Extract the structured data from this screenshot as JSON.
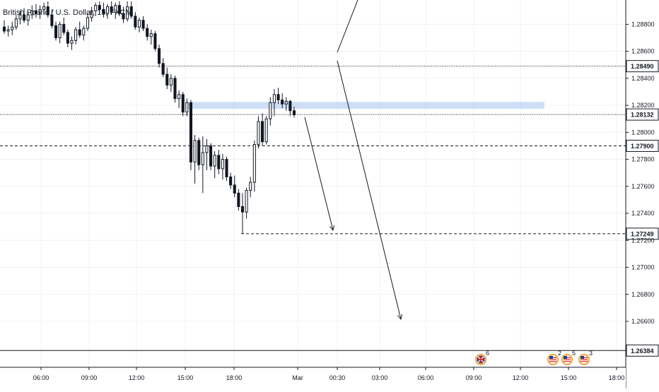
{
  "chart_data": {
    "type": "candlestick",
    "title": "British Pound / U.S. Dollar, 15, FXCM",
    "x_ticks": [
      "06:00",
      "09:00",
      "12:00",
      "15:00",
      "18:00",
      "Mar",
      "00:30",
      "03:00",
      "06:00",
      "09:00",
      "12:00",
      "15:00",
      "18:00"
    ],
    "y_ticks": [
      1.288,
      1.286,
      1.2849,
      1.284,
      1.282,
      1.28132,
      1.28,
      1.279,
      1.278,
      1.276,
      1.274,
      1.27249,
      1.272,
      1.27,
      1.268,
      1.266,
      1.26384
    ],
    "y_tick_labels": [
      "1.28800",
      "1.28600",
      "1.28490",
      "1.28400",
      "1.28200",
      "1.28132",
      "1.28000",
      "1.27900",
      "1.27800",
      "1.27600",
      "1.27400",
      "1.27249",
      "1.27200",
      "1.27000",
      "1.26800",
      "1.26600",
      "1.26384"
    ],
    "ylim": [
      1.2626,
      1.2898
    ],
    "grid": true,
    "horizontal_levels": [
      {
        "value": 1.2849,
        "label": "1.28490",
        "style": "dotted"
      },
      {
        "value": 1.28132,
        "label": "1.28132",
        "style": "dotted"
      },
      {
        "value": 1.279,
        "label": "1.27900",
        "style": "dashed"
      },
      {
        "value": 1.27249,
        "label": "1.27249",
        "style": "dashed"
      },
      {
        "value": 1.26384,
        "label": "1.26384",
        "style": "solid"
      }
    ],
    "zone": {
      "from": 1.2818,
      "to": 1.2822,
      "color": "#c5d8f5"
    },
    "candles": [
      [
        1.2878,
        1.2883,
        1.2873,
        1.2875
      ],
      [
        1.2875,
        1.2879,
        1.2871,
        1.2876
      ],
      [
        1.2876,
        1.2882,
        1.2872,
        1.2878
      ],
      [
        1.2878,
        1.2887,
        1.2876,
        1.2884
      ],
      [
        1.2884,
        1.289,
        1.288,
        1.2887
      ],
      [
        1.2887,
        1.2892,
        1.2881,
        1.2883
      ],
      [
        1.2883,
        1.2889,
        1.2879,
        1.2887
      ],
      [
        1.2887,
        1.2894,
        1.2884,
        1.289
      ],
      [
        1.289,
        1.2895,
        1.2885,
        1.2888
      ],
      [
        1.2888,
        1.2894,
        1.2884,
        1.2891
      ],
      [
        1.2891,
        1.2896,
        1.2887,
        1.2893
      ],
      [
        1.2893,
        1.2897,
        1.2885,
        1.2887
      ],
      [
        1.2887,
        1.2891,
        1.2877,
        1.2879
      ],
      [
        1.2879,
        1.2882,
        1.2868,
        1.287
      ],
      [
        1.287,
        1.2882,
        1.2866,
        1.288
      ],
      [
        1.288,
        1.2885,
        1.2872,
        1.2874
      ],
      [
        1.2874,
        1.2876,
        1.2863,
        1.2866
      ],
      [
        1.2866,
        1.2871,
        1.2861,
        1.2868
      ],
      [
        1.2868,
        1.2878,
        1.2865,
        1.2876
      ],
      [
        1.2876,
        1.2882,
        1.287,
        1.2872
      ],
      [
        1.2872,
        1.2879,
        1.2868,
        1.2877
      ],
      [
        1.2877,
        1.2888,
        1.2875,
        1.2885
      ],
      [
        1.2885,
        1.2893,
        1.2882,
        1.289
      ],
      [
        1.289,
        1.2896,
        1.2886,
        1.2894
      ],
      [
        1.2894,
        1.2897,
        1.2888,
        1.2891
      ],
      [
        1.2891,
        1.2896,
        1.2885,
        1.2888
      ],
      [
        1.2888,
        1.2895,
        1.2884,
        1.2893
      ],
      [
        1.2893,
        1.2897,
        1.2887,
        1.2889
      ],
      [
        1.2889,
        1.2896,
        1.2884,
        1.2894
      ],
      [
        1.2894,
        1.2897,
        1.2886,
        1.2888
      ],
      [
        1.2888,
        1.2893,
        1.2881,
        1.2884
      ],
      [
        1.2884,
        1.2897,
        1.2882,
        1.2893
      ],
      [
        1.2893,
        1.2897,
        1.2884,
        1.2886
      ],
      [
        1.2886,
        1.2889,
        1.2876,
        1.2878
      ],
      [
        1.2878,
        1.2885,
        1.2874,
        1.2883
      ],
      [
        1.2883,
        1.2886,
        1.2875,
        1.2877
      ],
      [
        1.2877,
        1.288,
        1.2868,
        1.2871
      ],
      [
        1.2871,
        1.2876,
        1.2865,
        1.2873
      ],
      [
        1.2873,
        1.2875,
        1.286,
        1.2862
      ],
      [
        1.2862,
        1.2865,
        1.2848,
        1.2851
      ],
      [
        1.2851,
        1.2855,
        1.2841,
        1.2843
      ],
      [
        1.2843,
        1.2848,
        1.2832,
        1.2835
      ],
      [
        1.2835,
        1.2843,
        1.283,
        1.284
      ],
      [
        1.284,
        1.2842,
        1.2822,
        1.2825
      ],
      [
        1.2825,
        1.2831,
        1.2818,
        1.2828
      ],
      [
        1.2828,
        1.283,
        1.2812,
        1.2815
      ],
      [
        1.2815,
        1.2825,
        1.2812,
        1.2822
      ],
      [
        1.2822,
        1.2824,
        1.2772,
        1.2778
      ],
      [
        1.2778,
        1.2798,
        1.2762,
        1.2794
      ],
      [
        1.2794,
        1.2796,
        1.2772,
        1.2776
      ],
      [
        1.2776,
        1.2797,
        1.2755,
        1.2785
      ],
      [
        1.2785,
        1.2795,
        1.2772,
        1.279
      ],
      [
        1.279,
        1.2792,
        1.2772,
        1.2775
      ],
      [
        1.2775,
        1.2786,
        1.2766,
        1.2783
      ],
      [
        1.2783,
        1.2787,
        1.2769,
        1.2773
      ],
      [
        1.2773,
        1.2784,
        1.2765,
        1.278
      ],
      [
        1.278,
        1.2782,
        1.2764,
        1.2767
      ],
      [
        1.2767,
        1.277,
        1.2758,
        1.2761
      ],
      [
        1.2761,
        1.2768,
        1.2752,
        1.2755
      ],
      [
        1.2755,
        1.2758,
        1.2742,
        1.2745
      ],
      [
        1.2745,
        1.2755,
        1.2725,
        1.2741
      ],
      [
        1.2741,
        1.2759,
        1.2736,
        1.2757
      ],
      [
        1.2757,
        1.2767,
        1.2752,
        1.2763
      ],
      [
        1.2763,
        1.2794,
        1.2756,
        1.2791
      ],
      [
        1.2791,
        1.2812,
        1.2788,
        1.2808
      ],
      [
        1.2808,
        1.2814,
        1.279,
        1.2793
      ],
      [
        1.2793,
        1.2812,
        1.2791,
        1.281
      ],
      [
        1.281,
        1.2826,
        1.2805,
        1.2822
      ],
      [
        1.2822,
        1.2832,
        1.2812,
        1.2828
      ],
      [
        1.2828,
        1.2833,
        1.2821,
        1.2824
      ],
      [
        1.2824,
        1.2829,
        1.2818,
        1.2821
      ],
      [
        1.2821,
        1.2826,
        1.2816,
        1.2823
      ],
      [
        1.2823,
        1.2824,
        1.2812,
        1.2816
      ],
      [
        1.2816,
        1.2819,
        1.2811,
        1.2813
      ]
    ],
    "trend_arrows": [
      {
        "from": [
          0.468,
          1.2855
        ],
        "to": [
          0.466,
          1.2868
        ],
        "style": "line"
      },
      {
        "from": [
          0.467,
          1.2851
        ],
        "to": [
          0.555,
          1.2675
        ],
        "style": "arrow"
      },
      {
        "from": [
          0.425,
          1.2813
        ],
        "to": [
          0.461,
          1.2729
        ],
        "style": "arrow"
      }
    ],
    "event_markers": [
      {
        "label": "6",
        "flag": "gb"
      },
      {
        "label": "2",
        "flag": "us"
      },
      {
        "label": "5",
        "flag": "us"
      },
      {
        "label": "3",
        "flag": "us"
      }
    ]
  }
}
